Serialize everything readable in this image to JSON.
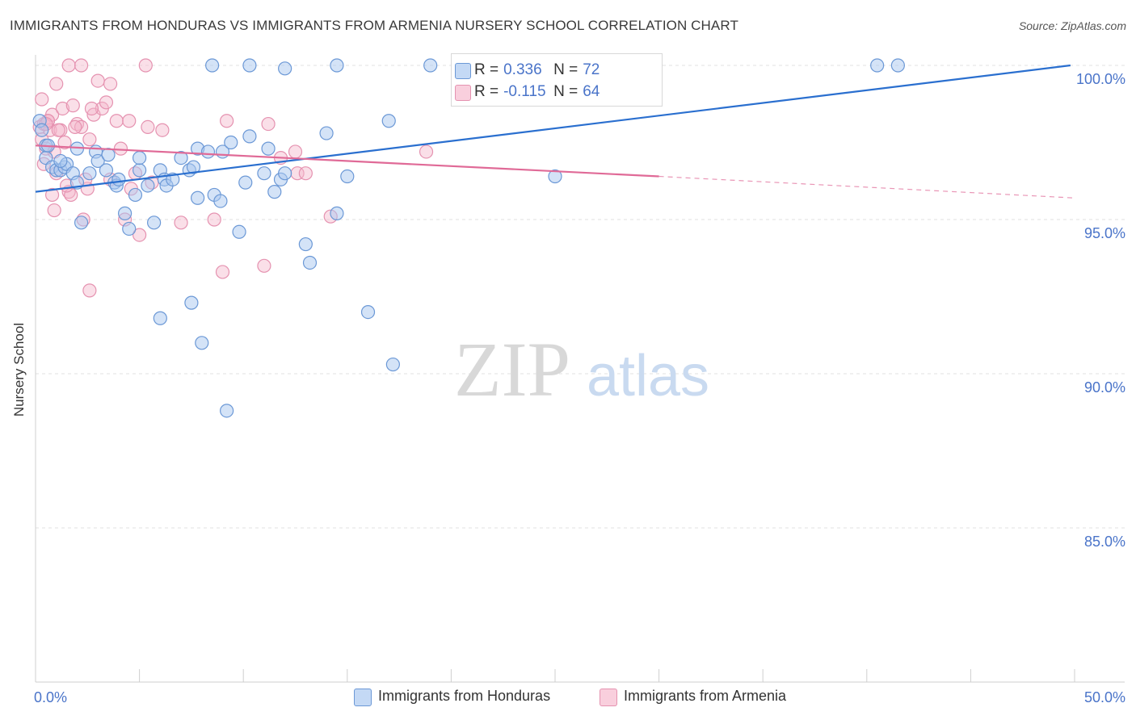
{
  "title": "IMMIGRANTS FROM HONDURAS VS IMMIGRANTS FROM ARMENIA NURSERY SCHOOL CORRELATION CHART",
  "source": "Source: ZipAtlas.com",
  "watermark": {
    "zip": "ZIP",
    "atlas": "atlas"
  },
  "legend": {
    "honduras": {
      "r_label": "R =",
      "r_value": "0.336",
      "n_label": "N =",
      "n_value": "72"
    },
    "armenia": {
      "r_label": "R =",
      "r_value": "-0.115",
      "n_label": "N =",
      "n_value": "64"
    }
  },
  "colors": {
    "blue_fill": "#aac8ef",
    "blue_stroke": "#6b98d6",
    "blue_line": "#2a6fcf",
    "pink_fill": "#f5b8cc",
    "pink_stroke": "#e592b0",
    "pink_line": "#e06a97",
    "axis_text": "#4a74c9"
  },
  "chart_data": {
    "type": "scatter",
    "title": "IMMIGRANTS FROM HONDURAS VS IMMIGRANTS FROM ARMENIA NURSERY SCHOOL CORRELATION CHART",
    "xlabel": "",
    "ylabel": "Nursery School",
    "xlim": [
      0,
      50
    ],
    "ylim": [
      80.5,
      100.8
    ],
    "x_tick_labels": [
      "0.0%",
      "50.0%"
    ],
    "y_ticks": [
      100,
      95,
      90,
      85
    ],
    "y_tick_labels": [
      "100.0%",
      "95.0%",
      "90.0%",
      "85.0%"
    ],
    "grid": true,
    "series": [
      {
        "name": "Immigrants from Honduras",
        "color": "#6b98d6",
        "trendline": {
          "x": [
            0,
            49.8
          ],
          "y": [
            95.9,
            100.0
          ],
          "dashed_from": null
        },
        "points": [
          [
            0.2,
            98.2
          ],
          [
            0.3,
            97.9
          ],
          [
            0.5,
            97.4
          ],
          [
            0.5,
            97.0
          ],
          [
            0.8,
            96.7
          ],
          [
            1.0,
            96.6
          ],
          [
            1.2,
            96.6
          ],
          [
            1.4,
            96.7
          ],
          [
            1.5,
            96.8
          ],
          [
            1.8,
            96.5
          ],
          [
            2.0,
            96.2
          ],
          [
            2.6,
            96.5
          ],
          [
            2.2,
            94.9
          ],
          [
            2.9,
            97.2
          ],
          [
            3.0,
            96.9
          ],
          [
            3.5,
            97.1
          ],
          [
            3.4,
            96.6
          ],
          [
            3.8,
            96.2
          ],
          [
            3.9,
            96.1
          ],
          [
            4.3,
            95.2
          ],
          [
            4.5,
            94.7
          ],
          [
            4.8,
            95.8
          ],
          [
            5.0,
            96.6
          ],
          [
            5.0,
            97.0
          ],
          [
            5.4,
            96.1
          ],
          [
            5.7,
            94.9
          ],
          [
            6.0,
            96.6
          ],
          [
            6.2,
            96.3
          ],
          [
            6.3,
            96.1
          ],
          [
            6.6,
            96.3
          ],
          [
            7.0,
            97.0
          ],
          [
            7.4,
            96.6
          ],
          [
            7.6,
            96.7
          ],
          [
            7.8,
            95.7
          ],
          [
            7.8,
            97.3
          ],
          [
            8.3,
            97.2
          ],
          [
            8.6,
            95.8
          ],
          [
            8.9,
            95.6
          ],
          [
            9.0,
            97.2
          ],
          [
            9.4,
            97.5
          ],
          [
            9.8,
            94.6
          ],
          [
            10.1,
            96.2
          ],
          [
            10.3,
            97.7
          ],
          [
            11.0,
            96.5
          ],
          [
            11.2,
            97.3
          ],
          [
            11.5,
            95.9
          ],
          [
            11.8,
            96.3
          ],
          [
            12.0,
            96.5
          ],
          [
            13.0,
            94.2
          ],
          [
            13.2,
            93.6
          ],
          [
            14.0,
            97.8
          ],
          [
            14.5,
            95.2
          ],
          [
            15.0,
            96.4
          ],
          [
            16.0,
            92.0
          ],
          [
            17.0,
            98.2
          ],
          [
            17.2,
            90.3
          ],
          [
            6.0,
            91.8
          ],
          [
            7.5,
            92.3
          ],
          [
            8.0,
            91.0
          ],
          [
            9.2,
            88.8
          ],
          [
            8.5,
            100.0
          ],
          [
            10.3,
            100.0
          ],
          [
            12.0,
            99.9
          ],
          [
            14.5,
            100.0
          ],
          [
            19.0,
            100.0
          ],
          [
            25.0,
            96.4
          ],
          [
            40.5,
            100.0
          ],
          [
            41.5,
            100.0
          ],
          [
            2.0,
            97.3
          ],
          [
            4.0,
            96.3
          ],
          [
            1.2,
            96.9
          ],
          [
            0.6,
            97.4
          ]
        ]
      },
      {
        "name": "Immigrants from Armenia",
        "color": "#e592b0",
        "trendline": {
          "x": [
            0,
            30
          ],
          "y": [
            97.4,
            96.4
          ],
          "dashed_x": [
            30,
            50
          ],
          "dashed_y": [
            96.4,
            95.7
          ]
        },
        "points": [
          [
            0.2,
            98.0
          ],
          [
            0.3,
            97.6
          ],
          [
            0.4,
            98.1
          ],
          [
            0.5,
            97.3
          ],
          [
            0.6,
            98.2
          ],
          [
            0.7,
            97.9
          ],
          [
            0.8,
            98.4
          ],
          [
            0.9,
            97.2
          ],
          [
            1.0,
            99.4
          ],
          [
            1.2,
            97.9
          ],
          [
            1.3,
            98.6
          ],
          [
            1.4,
            97.5
          ],
          [
            1.6,
            95.9
          ],
          [
            1.7,
            95.8
          ],
          [
            1.8,
            98.7
          ],
          [
            2.0,
            98.1
          ],
          [
            2.2,
            98.0
          ],
          [
            2.3,
            95.0
          ],
          [
            2.5,
            96.0
          ],
          [
            2.6,
            97.6
          ],
          [
            2.8,
            98.4
          ],
          [
            3.0,
            99.5
          ],
          [
            3.2,
            98.6
          ],
          [
            3.4,
            98.8
          ],
          [
            3.6,
            99.4
          ],
          [
            3.9,
            98.2
          ],
          [
            4.1,
            97.3
          ],
          [
            4.3,
            95.0
          ],
          [
            4.5,
            98.2
          ],
          [
            4.8,
            96.5
          ],
          [
            5.0,
            94.5
          ],
          [
            5.4,
            98.0
          ],
          [
            5.6,
            96.2
          ],
          [
            6.1,
            97.9
          ],
          [
            7.0,
            94.9
          ],
          [
            8.6,
            95.0
          ],
          [
            9.0,
            93.3
          ],
          [
            9.2,
            98.2
          ],
          [
            11.0,
            93.5
          ],
          [
            11.2,
            98.1
          ],
          [
            11.8,
            97.0
          ],
          [
            12.5,
            97.2
          ],
          [
            12.6,
            96.5
          ],
          [
            13.0,
            96.5
          ],
          [
            14.2,
            95.1
          ],
          [
            18.8,
            97.2
          ],
          [
            1.6,
            100.0
          ],
          [
            2.2,
            100.0
          ],
          [
            5.3,
            100.0
          ],
          [
            2.6,
            92.7
          ],
          [
            0.4,
            96.8
          ],
          [
            0.8,
            95.8
          ],
          [
            1.0,
            96.5
          ],
          [
            1.5,
            96.1
          ],
          [
            2.4,
            96.3
          ],
          [
            3.6,
            96.3
          ],
          [
            4.6,
            96.0
          ],
          [
            0.3,
            98.9
          ],
          [
            0.6,
            98.2
          ],
          [
            0.9,
            95.3
          ],
          [
            1.1,
            97.9
          ],
          [
            1.9,
            98.0
          ],
          [
            2.7,
            98.6
          ],
          [
            0.5,
            98.1
          ]
        ]
      }
    ],
    "bottom_legend": [
      "Immigrants from Honduras",
      "Immigrants from Armenia"
    ]
  }
}
